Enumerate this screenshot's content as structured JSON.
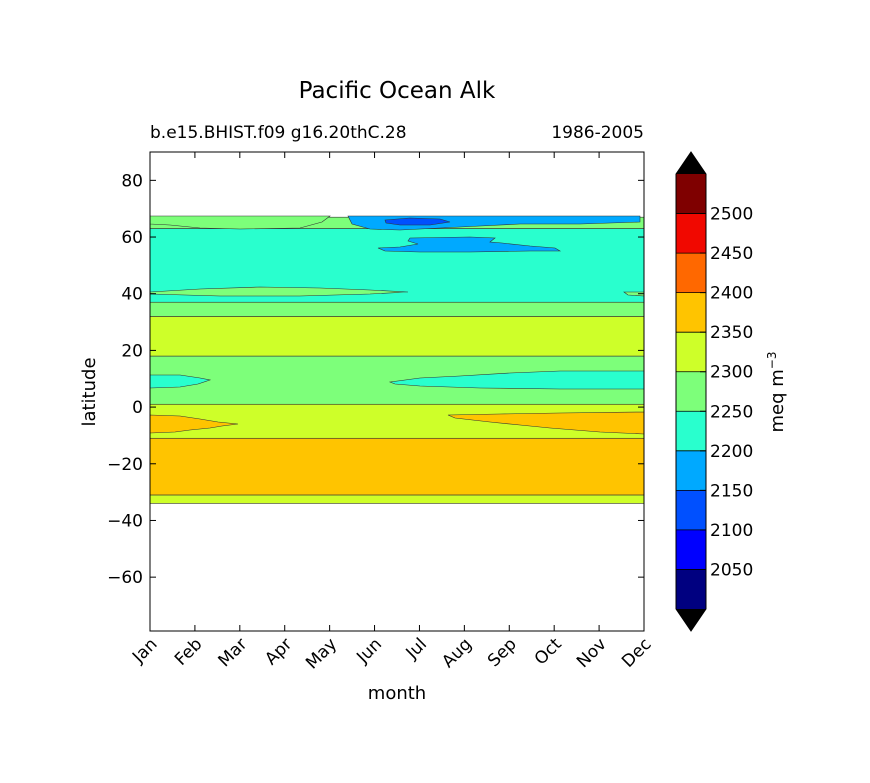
{
  "chart_data": {
    "type": "contour",
    "title": "Pacific Ocean Alk",
    "subtitle_left": "b.e15.BHIST.f09 g16.20thC.28",
    "subtitle_right": "1986-2005",
    "xlabel": "month",
    "ylabel": "latitude",
    "x_ticks": [
      "Jan",
      "Feb",
      "Mar",
      "Apr",
      "May",
      "Jun",
      "Jul",
      "Aug",
      "Sep",
      "Oct",
      "Nov",
      "Dec"
    ],
    "y_ticks": [
      80,
      60,
      40,
      20,
      0,
      -20,
      -40,
      -60
    ],
    "ylim": [
      -79,
      90
    ],
    "data_lat_range": [
      -34,
      67
    ],
    "grid": false,
    "colorbar": {
      "label": "meq m",
      "label_superscript": "−3",
      "ticks": [
        2050,
        2100,
        2150,
        2200,
        2250,
        2300,
        2350,
        2400,
        2450,
        2500
      ],
      "levels": [
        2000,
        2050,
        2100,
        2150,
        2200,
        2250,
        2300,
        2350,
        2400,
        2450,
        2500,
        2550
      ],
      "colors": [
        "#000080",
        "#0000ff",
        "#0050ff",
        "#00a9ff",
        "#29ffce",
        "#7dff7a",
        "#ceff29",
        "#ffc400",
        "#ff6800",
        "#f10800",
        "#7f0000"
      ],
      "extend_low_color": "#000000",
      "extend_high_color": "#000000"
    },
    "bands": [
      {
        "range": "2300-2350",
        "lat_bottom": -34,
        "lat_top": -31
      },
      {
        "range": "2350-2400",
        "lat_bottom": -31,
        "lat_top": -11
      },
      {
        "range": "2300-2350",
        "lat_bottom": -11,
        "lat_top": 1
      },
      {
        "range": "2250-2300",
        "lat_bottom": 1,
        "lat_top": 18
      },
      {
        "range": "2300-2350",
        "lat_bottom": 18,
        "lat_top": 32
      },
      {
        "range": "2250-2300",
        "lat_bottom": 32,
        "lat_top": 37
      },
      {
        "range": "2200-2250",
        "lat_bottom": 37,
        "lat_top": 63
      },
      {
        "range": "2250-2300",
        "lat_bottom": 63,
        "lat_top": 67
      }
    ]
  }
}
